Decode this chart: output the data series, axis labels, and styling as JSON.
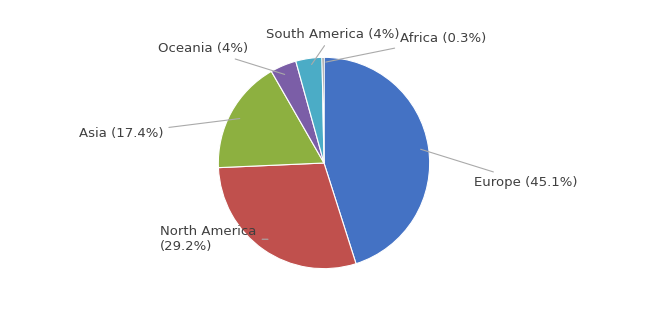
{
  "labels": [
    "Europe",
    "North America",
    "Asia",
    "Oceania",
    "South America",
    "Africa"
  ],
  "values": [
    45.1,
    29.2,
    17.4,
    4.0,
    4.0,
    0.3
  ],
  "colors": [
    "#4472C4",
    "#C0504D",
    "#8DB040",
    "#7B5EA7",
    "#4BACC6",
    "#595959"
  ],
  "figsize": [
    6.48,
    3.26
  ],
  "dpi": 100,
  "background_color": "#FFFFFF",
  "text_color": "#3F3F3F",
  "font_size": 9.5,
  "startangle": 90,
  "label_data": [
    {
      "text": "Europe (45.1%)",
      "xt": 1.42,
      "yt": -0.18,
      "ha": "left",
      "va": "center",
      "r_arrow": 0.9
    },
    {
      "text": "North America\n(29.2%)",
      "xt": -1.55,
      "yt": -0.72,
      "ha": "left",
      "va": "center",
      "r_arrow": 0.88
    },
    {
      "text": "Asia (17.4%)",
      "xt": -1.52,
      "yt": 0.28,
      "ha": "right",
      "va": "center",
      "r_arrow": 0.88
    },
    {
      "text": "Oceania (4%)",
      "xt": -0.72,
      "yt": 1.08,
      "ha": "right",
      "va": "center",
      "r_arrow": 0.9
    },
    {
      "text": "South America (4%)",
      "xt": 0.08,
      "yt": 1.22,
      "ha": "center",
      "va": "center",
      "r_arrow": 0.92
    },
    {
      "text": "Africa (0.3%)",
      "xt": 0.72,
      "yt": 1.18,
      "ha": "left",
      "va": "center",
      "r_arrow": 0.95
    }
  ]
}
